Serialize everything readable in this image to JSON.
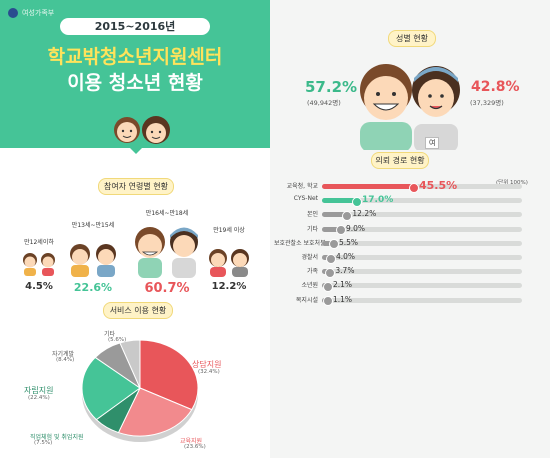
{
  "header": {
    "logo_text": "여성가족부",
    "years": "2015~2016년",
    "title_line1": "학교밖청소년지원센터",
    "title_line2": "이용 청소년 현황"
  },
  "colors": {
    "green": "#45c497",
    "red": "#e8565a",
    "gray": "#9a9a9a",
    "pill": "#fff3c7"
  },
  "gender": {
    "pill": "성별 현황",
    "male_pct": "57.2%",
    "male_count": "(49,942명)",
    "female_pct": "42.8%",
    "female_count": "(37,329명)",
    "female_tag": "여"
  },
  "route": {
    "pill": "의뢰 경로 현황",
    "unit": "(단위 100%)"
  },
  "age": {
    "pill": "참여자 연령별 현황"
  },
  "service": {
    "pill": "서비스 이용 현황"
  },
  "chart_data": [
    {
      "type": "bar",
      "title": "참여자 연령별 현황",
      "categories": [
        "만12세이하",
        "만13세~만15세",
        "만16세~만18세",
        "만19세 이상"
      ],
      "values": [
        4.5,
        22.6,
        60.7,
        12.2
      ],
      "labels": [
        "4.5%",
        "22.6%",
        "60.7%",
        "12.2%"
      ]
    },
    {
      "type": "bar",
      "title": "의뢰 경로 현황",
      "categories": [
        "교육청, 학교",
        "CYS-Net",
        "본인",
        "기타",
        "보호관찰소 보호처분",
        "경찰서",
        "가족",
        "소년원",
        "복지시설"
      ],
      "values": [
        45.5,
        17.0,
        12.2,
        9.0,
        5.5,
        4.0,
        3.7,
        2.1,
        1.1
      ],
      "labels": [
        "45.5%",
        "17.0%",
        "12.2%",
        "9.0%",
        "5.5%",
        "4.0%",
        "3.7%",
        "2.1%",
        "1.1%"
      ],
      "xlim": [
        0,
        100
      ]
    },
    {
      "type": "pie",
      "title": "서비스 이용 현황",
      "categories": [
        "상담지원",
        "교육지원",
        "직업체험 및 취업지원",
        "자립지원",
        "자기계발",
        "기타"
      ],
      "values": [
        32.4,
        23.6,
        7.5,
        22.4,
        8.4,
        5.6
      ],
      "labels": [
        "(32.4%)",
        "(23.6%)",
        "(7.5%)",
        "(22.4%)",
        "(8.4%)",
        "(5.6%)"
      ]
    }
  ]
}
